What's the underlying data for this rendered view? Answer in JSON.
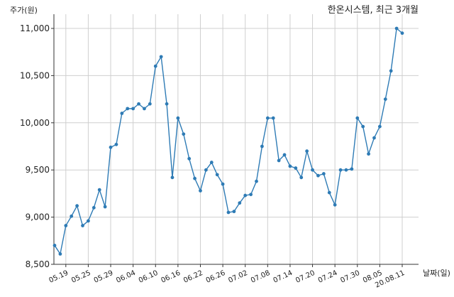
{
  "chart_data": {
    "type": "line",
    "title": "한온시스템, 최근 3개월",
    "ylabel": "주가(원)",
    "xlabel": "날짜(일)",
    "ylim": [
      8500,
      11000
    ],
    "yticks": [
      8500,
      9000,
      9500,
      10000,
      10500,
      11000
    ],
    "ytick_labels": [
      "8,500",
      "9,000",
      "9,500",
      "10,000",
      "10,500",
      "11,000"
    ],
    "xtick_labels": [
      "05.19",
      "05.25",
      "05.29",
      "06.04",
      "06.10",
      "06.16",
      "06.22",
      "06.26",
      "07.02",
      "07.08",
      "07.14",
      "07.20",
      "07.24",
      "07.30",
      "08.05",
      "20.08.11"
    ],
    "xtick_index": [
      2,
      6,
      10,
      14,
      18,
      22,
      26,
      30,
      34,
      38,
      42,
      46,
      50,
      54,
      58,
      62
    ],
    "grid": true,
    "line_color": "#2e7bb5",
    "series": [
      {
        "values": [
          8700,
          8610,
          8910,
          9010,
          9120,
          8910,
          8960,
          9100,
          9290,
          9110,
          9740,
          9770,
          10100,
          10150,
          10150,
          10200,
          10150,
          10200,
          10600,
          10700,
          10200,
          9420,
          10050,
          9880,
          9620,
          9410,
          9280,
          9500,
          9580,
          9450,
          9350,
          9050,
          9060,
          9150,
          9230,
          9240,
          9380,
          9750,
          10050,
          10050,
          9600,
          9660,
          9540,
          9520,
          9420,
          9700,
          9500,
          9440,
          9460,
          9260,
          9130,
          9500,
          9500,
          9510,
          10050,
          9960,
          9670,
          9840,
          9960,
          10250,
          10550,
          11000,
          10950
        ]
      }
    ]
  }
}
